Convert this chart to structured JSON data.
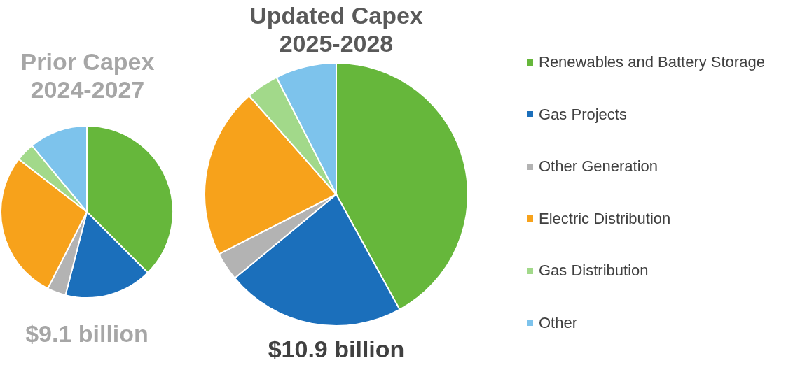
{
  "chart_data": [
    {
      "type": "pie",
      "title": "Prior Capex 2024-2027",
      "values": [
        37.5,
        16.5,
        3.5,
        28,
        3.5,
        11
      ],
      "colors": [
        "#66b73b",
        "#1b6fbb",
        "#b3b3b3",
        "#f7a21b",
        "#a2d98a",
        "#7dc3ec"
      ],
      "annotations": [
        "$9.1 billion"
      ]
    },
    {
      "type": "pie",
      "title": "Updated Capex 2025-2028",
      "categories": [
        "Renewables and Battery Storage",
        "Gas Projects",
        "Other Generation",
        "Electric Distribution",
        "Gas Distribution",
        "Other"
      ],
      "values": [
        42,
        22,
        3.5,
        21,
        4,
        7.5
      ],
      "colors": [
        "#66b73b",
        "#1b6fbb",
        "#b3b3b3",
        "#f7a21b",
        "#a2d98a",
        "#7dc3ec"
      ],
      "annotations": [
        "$10.9 billion"
      ],
      "legend": "right"
    }
  ]
}
